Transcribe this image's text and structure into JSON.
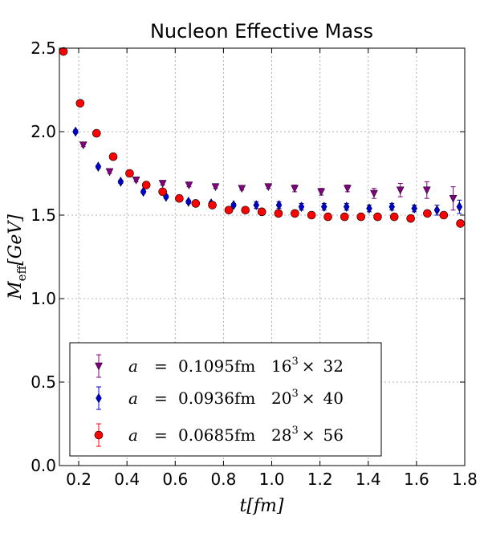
{
  "chart_data": {
    "type": "scatter",
    "title": "Nucleon Effective Mass",
    "xlabel": "t[fm]",
    "ylabel_main": "M",
    "ylabel_sub": "eff",
    "ylabel_rest": "[GeV]",
    "xlim": [
      0.12,
      1.8
    ],
    "ylim": [
      0.0,
      2.5
    ],
    "xticks": [
      0.2,
      0.4,
      0.6,
      0.8,
      1.0,
      1.2,
      1.4,
      1.6,
      1.8
    ],
    "xtick_labels": [
      "0.2",
      "0.4",
      "0.6",
      "0.8",
      "1.0",
      "1.2",
      "1.4",
      "1.6",
      "1.8"
    ],
    "yticks": [
      0.0,
      0.5,
      1.0,
      1.5,
      2.0,
      2.5
    ],
    "ytick_labels": [
      "0.0",
      "0.5",
      "1.0",
      "1.5",
      "2.0",
      "2.5"
    ],
    "grid": true,
    "legend_position": "lower-left",
    "series": [
      {
        "name": "a = 0.1095fm 16^3 × 32",
        "legend_a": "a",
        "legend_eq": "=",
        "legend_spacing": "0.1095fm",
        "legend_base": "16",
        "legend_exp": "3",
        "legend_times": "×",
        "legend_t": "32",
        "color": "#800080",
        "marker": "triangle-down",
        "x": [
          0.219,
          0.328,
          0.438,
          0.548,
          0.657,
          0.767,
          0.876,
          0.986,
          1.095,
          1.205,
          1.314,
          1.424,
          1.533,
          1.643,
          1.752
        ],
        "y": [
          1.92,
          1.76,
          1.71,
          1.69,
          1.68,
          1.67,
          1.66,
          1.67,
          1.66,
          1.64,
          1.66,
          1.63,
          1.65,
          1.65,
          1.6
        ],
        "err": [
          0.01,
          0.01,
          0.01,
          0.01,
          0.01,
          0.01,
          0.01,
          0.01,
          0.02,
          0.02,
          0.02,
          0.03,
          0.04,
          0.05,
          0.07
        ]
      },
      {
        "name": "a = 0.0936fm 20^3 × 40",
        "legend_a": "a",
        "legend_eq": "=",
        "legend_spacing": "0.0936fm",
        "legend_base": "20",
        "legend_exp": "3",
        "legend_times": "×",
        "legend_t": "40",
        "color": "#0000cc",
        "marker": "diamond",
        "x": [
          0.187,
          0.281,
          0.374,
          0.468,
          0.562,
          0.655,
          0.749,
          0.842,
          0.936,
          1.03,
          1.123,
          1.217,
          1.31,
          1.404,
          1.498,
          1.591,
          1.685,
          1.778
        ],
        "y": [
          2.0,
          1.79,
          1.7,
          1.64,
          1.61,
          1.58,
          1.57,
          1.56,
          1.56,
          1.56,
          1.55,
          1.55,
          1.55,
          1.54,
          1.55,
          1.54,
          1.53,
          1.55
        ],
        "err": [
          0.01,
          0.01,
          0.01,
          0.01,
          0.01,
          0.01,
          0.01,
          0.01,
          0.02,
          0.02,
          0.02,
          0.02,
          0.02,
          0.02,
          0.02,
          0.02,
          0.03,
          0.04
        ]
      },
      {
        "name": "a = 0.0685fm 28^3 × 56",
        "legend_a": "a",
        "legend_eq": "=",
        "legend_spacing": "0.0685fm",
        "legend_base": "28",
        "legend_exp": "3",
        "legend_times": "×",
        "legend_t": "56",
        "color": "#ff0000",
        "marker": "circle",
        "x": [
          0.137,
          0.206,
          0.274,
          0.343,
          0.411,
          0.48,
          0.548,
          0.617,
          0.685,
          0.754,
          0.822,
          0.891,
          0.959,
          1.028,
          1.096,
          1.165,
          1.233,
          1.302,
          1.37,
          1.439,
          1.508,
          1.576,
          1.645,
          1.713,
          1.782
        ],
        "y": [
          2.48,
          2.17,
          1.99,
          1.85,
          1.75,
          1.68,
          1.64,
          1.6,
          1.57,
          1.56,
          1.53,
          1.53,
          1.52,
          1.51,
          1.51,
          1.5,
          1.49,
          1.49,
          1.49,
          1.49,
          1.49,
          1.48,
          1.51,
          1.5,
          1.45
        ]
      }
    ]
  }
}
